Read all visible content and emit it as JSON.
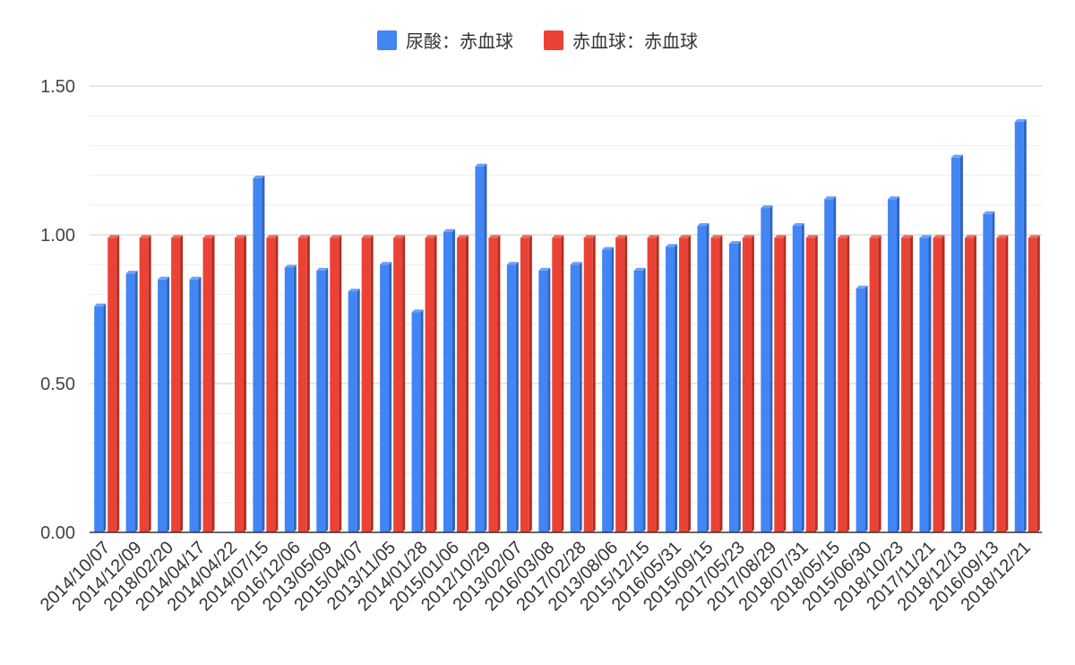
{
  "chart_data": {
    "type": "bar",
    "categories": [
      "2014/10/07",
      "2014/12/09",
      "2018/02/20",
      "2014/04/17",
      "2014/04/22",
      "2014/07/15",
      "2016/12/06",
      "2013/05/09",
      "2015/04/07",
      "2013/11/05",
      "2014/01/28",
      "2015/01/06",
      "2012/10/29",
      "2013/02/07",
      "2016/03/08",
      "2017/02/28",
      "2013/08/06",
      "2015/12/15",
      "2016/05/31",
      "2015/09/15",
      "2017/05/23",
      "2017/08/29",
      "2018/07/31",
      "2018/05/15",
      "2015/06/30",
      "2018/10/23",
      "2017/11/21",
      "2018/12/13",
      "2016/09/13",
      "2018/12/21"
    ],
    "series": [
      {
        "name": "尿酸：赤血球",
        "color": "#4285f4",
        "values": [
          0.76,
          0.87,
          0.85,
          0.85,
          0,
          1.19,
          0.89,
          0.88,
          0.81,
          0.9,
          0.74,
          1.01,
          1.23,
          0.9,
          0.88,
          0.9,
          0.95,
          0.88,
          0.96,
          1.03,
          0.97,
          1.09,
          1.03,
          1.12,
          0.82,
          1.12,
          0.99,
          1.26,
          1.07,
          1.38
        ]
      },
      {
        "name": "赤血球：赤血球",
        "color": "#ea4335",
        "values": [
          0.99,
          0.99,
          0.99,
          0.99,
          0.99,
          0.99,
          0.99,
          0.99,
          0.99,
          0.99,
          0.99,
          0.99,
          0.99,
          0.99,
          0.99,
          0.99,
          0.99,
          0.99,
          0.99,
          0.99,
          0.99,
          0.99,
          0.99,
          0.99,
          0.99,
          0.99,
          0.99,
          0.99,
          0.99,
          0.99
        ]
      }
    ],
    "ylim": [
      0,
      1.5
    ],
    "yticks": [
      "0.00",
      "0.50",
      "1.00",
      "1.50"
    ],
    "yticks_values": [
      0,
      0.5,
      1.0,
      1.5
    ],
    "grid": true,
    "legend_position": "top-center"
  }
}
